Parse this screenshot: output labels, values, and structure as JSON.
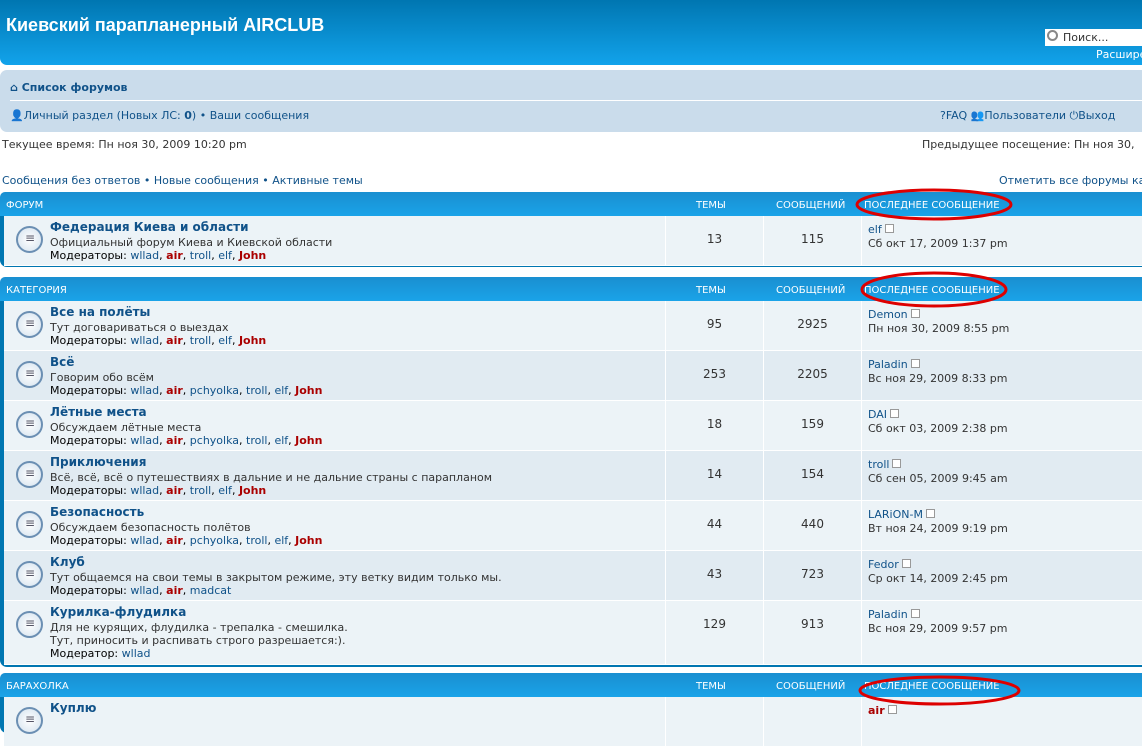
{
  "header": {
    "title": "Киевский парапланерный AIRCLUB",
    "search_placeholder": "Поиск...",
    "advanced_search": "Расшире"
  },
  "nav": {
    "home": "Список форумов",
    "ucp": "Личный раздел (Новых ЛС: ",
    "ucp_count": "0",
    "ucp_close": ")",
    "own_posts": "Ваши сообщения",
    "faq": "FAQ",
    "members": "Пользователи",
    "logout": "Выход"
  },
  "info": {
    "current_time": "Текущее время: Пн ноя 30, 2009 10:20 pm",
    "last_visit": "Предыдущее посещение: Пн ноя 30,",
    "unanswered": "Сообщения без ответов",
    "new_posts": "Новые сообщения",
    "active": "Активные темы",
    "mark_read": "Отметить все форумы ка"
  },
  "columns": {
    "topics": "ТЕМЫ",
    "posts": "СООБЩЕНИЙ",
    "last_post": "ПОСЛЕДНЕЕ СООБЩЕНИЕ"
  },
  "blocks": [
    {
      "title": "ФОРУМ",
      "forums": [
        {
          "name": "Федерация Киева и области",
          "desc": "Официальный форум Киева и Киевской области",
          "mod_label": "Модераторы:",
          "mods": [
            "wllad",
            "air",
            "troll",
            "elf",
            "John"
          ],
          "topics": "13",
          "posts": "115",
          "last_user": "elf",
          "last_date": "Сб окт 17, 2009 1:37 pm"
        }
      ]
    },
    {
      "title": "КАТЕГОРИЯ",
      "forums": [
        {
          "name": "Все на полёты",
          "desc": "Тут договариваться о выездах",
          "mod_label": "Модераторы:",
          "mods": [
            "wllad",
            "air",
            "troll",
            "elf",
            "John"
          ],
          "topics": "95",
          "posts": "2925",
          "last_user": "Demon",
          "last_date": "Пн ноя 30, 2009 8:55 pm"
        },
        {
          "name": "Всё",
          "desc": "Говорим обо всём",
          "mod_label": "Модераторы:",
          "mods": [
            "wllad",
            "air",
            "pchyolka",
            "troll",
            "elf",
            "John"
          ],
          "topics": "253",
          "posts": "2205",
          "last_user": "Paladin",
          "last_date": "Вс ноя 29, 2009 8:33 pm"
        },
        {
          "name": "Лётные места",
          "desc": "Обсуждаем лётные места",
          "mod_label": "Модераторы:",
          "mods": [
            "wllad",
            "air",
            "pchyolka",
            "troll",
            "elf",
            "John"
          ],
          "topics": "18",
          "posts": "159",
          "last_user": "DAI",
          "last_date": "Сб окт 03, 2009 2:38 pm"
        },
        {
          "name": "Приключения",
          "desc": "Всё, всё, всё о путешествиях в дальние и не дальние страны с парапланом",
          "mod_label": "Модераторы:",
          "mods": [
            "wllad",
            "air",
            "troll",
            "elf",
            "John"
          ],
          "topics": "14",
          "posts": "154",
          "last_user": "troll",
          "last_date": "Сб сен 05, 2009 9:45 am"
        },
        {
          "name": "Безопасность",
          "desc": "Обсуждаем безопасность полётов",
          "mod_label": "Модераторы:",
          "mods": [
            "wllad",
            "air",
            "pchyolka",
            "troll",
            "elf",
            "John"
          ],
          "topics": "44",
          "posts": "440",
          "last_user": "LARiON-M",
          "last_date": "Вт ноя 24, 2009 9:19 pm"
        },
        {
          "name": "Клуб",
          "desc": "Тут общаемся на свои темы в закрытом режиме, эту ветку видим только мы.",
          "mod_label": "Модераторы:",
          "mods": [
            "wllad",
            "air",
            "madcat"
          ],
          "topics": "43",
          "posts": "723",
          "last_user": "Fedor",
          "last_date": "Ср окт 14, 2009 2:45 pm"
        },
        {
          "name": "Курилка-флудилка",
          "desc": "Для не курящих, флудилка - трепалка - смешилка.",
          "desc2": "Тут, приносить и распивать строго разрешается:).",
          "mod_label": "Модератор:",
          "mods": [
            "wllad"
          ],
          "topics": "129",
          "posts": "913",
          "last_user": "Paladin",
          "last_date": "Вс ноя 29, 2009 9:57 pm"
        }
      ]
    },
    {
      "title": "БАРАХОЛКА",
      "forums": [
        {
          "name": "Куплю",
          "last_user": "air"
        }
      ]
    }
  ],
  "colors": {
    "header": "#0076b1",
    "navbar": "#cadceb",
    "row_a": "#ecf3f7",
    "row_b": "#e1ebf2",
    "annotation": "#dd0000"
  }
}
